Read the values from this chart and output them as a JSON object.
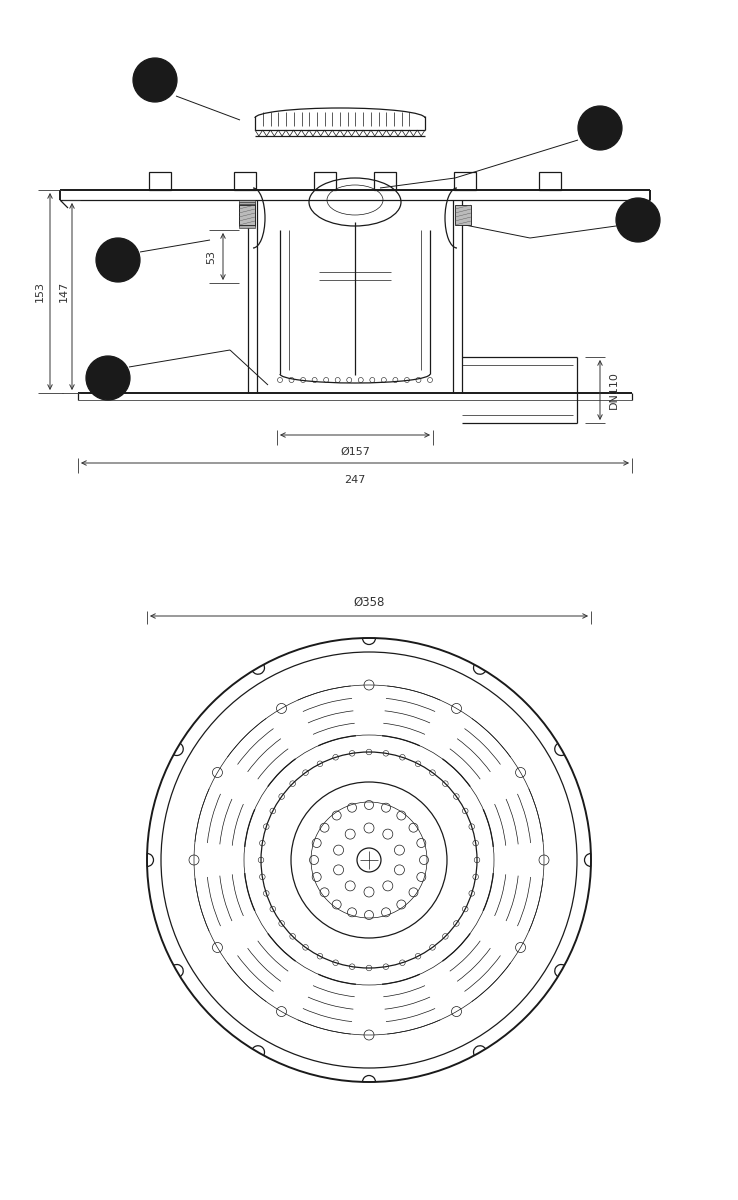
{
  "bg_color": "#ffffff",
  "line_color": "#1a1a1a",
  "thin_lw": 0.5,
  "medium_lw": 0.9,
  "thick_lw": 1.4,
  "dim_color": "#333333",
  "dim_153": "153",
  "dim_147": "147",
  "dim_53": "53",
  "dim_157": "Ø157",
  "dim_247": "247",
  "dim_358": "Ø358",
  "dim_dn110": "DN110"
}
